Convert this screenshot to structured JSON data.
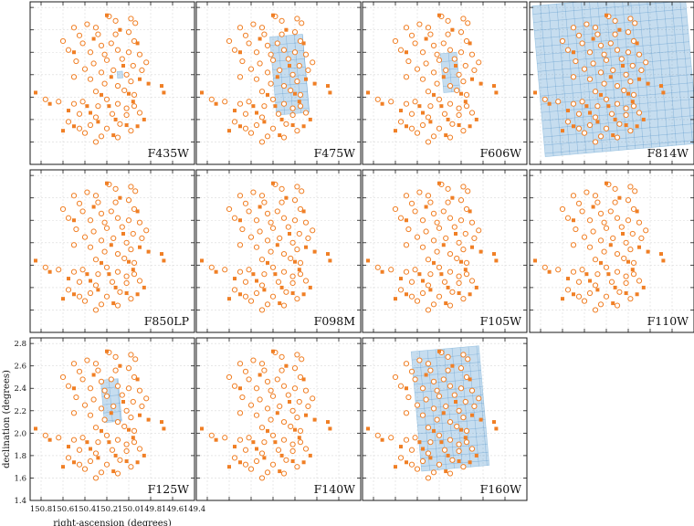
{
  "chart_data": {
    "type": "scatter",
    "xlabel": "right-ascension (degrees)",
    "ylabel": "declination (degrees)",
    "xlim": [
      150.9,
      149.4
    ],
    "ylim": [
      1.4,
      2.85
    ],
    "xticks": [
      "150.8",
      "150.6",
      "150.4",
      "150.2",
      "150.0",
      "149.8",
      "149.6",
      "149.4"
    ],
    "yticks": [
      "1.4",
      "1.6",
      "1.8",
      "2.0",
      "2.2",
      "2.4",
      "2.6",
      "2.8"
    ],
    "marker_color": "#f07f25",
    "footprint_color": "#5b9fd1",
    "panels": [
      {
        "filter": "F435W",
        "coverage": [
          {
            "ra": 150.08,
            "dec": 2.2,
            "w": 0.05,
            "h": 0.06
          }
        ]
      },
      {
        "filter": "F475W",
        "coverage": [
          {
            "ra": 150.05,
            "dec": 2.2,
            "w": 0.3,
            "h": 0.7
          }
        ]
      },
      {
        "filter": "F606W",
        "coverage": [
          {
            "ra": 150.1,
            "dec": 2.22,
            "w": 0.15,
            "h": 0.35
          }
        ]
      },
      {
        "filter": "F814W",
        "coverage": [
          {
            "ra": 150.12,
            "dec": 2.2,
            "w": 1.4,
            "h": 1.35
          }
        ]
      },
      {
        "filter": "F850LP",
        "coverage": []
      },
      {
        "filter": "F098M",
        "coverage": []
      },
      {
        "filter": "F105W",
        "coverage": []
      },
      {
        "filter": "F110W",
        "coverage": []
      },
      {
        "filter": "F125W",
        "coverage": [
          {
            "ra": 150.16,
            "dec": 2.29,
            "w": 0.16,
            "h": 0.38
          }
        ]
      },
      {
        "filter": "F140W",
        "coverage": []
      },
      {
        "filter": "F160W",
        "coverage": [
          {
            "ra": 150.1,
            "dec": 2.22,
            "w": 0.62,
            "h": 1.07
          }
        ]
      }
    ],
    "open_points": [
      [
        150.5,
        2.62
      ],
      [
        150.38,
        2.65
      ],
      [
        150.3,
        2.62
      ],
      [
        150.18,
        2.72
      ],
      [
        150.12,
        2.68
      ],
      [
        149.98,
        2.7
      ],
      [
        149.94,
        2.66
      ],
      [
        150.45,
        2.55
      ],
      [
        150.28,
        2.56
      ],
      [
        150.12,
        2.56
      ],
      [
        150.0,
        2.58
      ],
      [
        150.6,
        2.5
      ],
      [
        150.42,
        2.48
      ],
      [
        150.25,
        2.46
      ],
      [
        150.16,
        2.48
      ],
      [
        149.95,
        2.5
      ],
      [
        150.55,
        2.42
      ],
      [
        150.35,
        2.4
      ],
      [
        150.22,
        2.38
      ],
      [
        150.1,
        2.42
      ],
      [
        150.0,
        2.4
      ],
      [
        149.9,
        2.38
      ],
      [
        150.48,
        2.32
      ],
      [
        150.32,
        2.3
      ],
      [
        150.2,
        2.33
      ],
      [
        150.06,
        2.34
      ],
      [
        149.96,
        2.28
      ],
      [
        150.4,
        2.25
      ],
      [
        150.25,
        2.22
      ],
      [
        150.14,
        2.24
      ],
      [
        150.02,
        2.2
      ],
      [
        149.98,
        2.14
      ],
      [
        150.5,
        2.18
      ],
      [
        150.35,
        2.16
      ],
      [
        150.22,
        2.12
      ],
      [
        150.1,
        2.1
      ],
      [
        149.88,
        2.24
      ],
      [
        149.84,
        2.31
      ],
      [
        150.3,
        2.05
      ],
      [
        150.04,
        2.06
      ],
      [
        149.95,
        2.02
      ],
      [
        150.76,
        1.98
      ],
      [
        150.64,
        1.96
      ],
      [
        150.5,
        1.94
      ],
      [
        150.42,
        1.96
      ],
      [
        150.28,
        1.92
      ],
      [
        150.2,
        1.98
      ],
      [
        150.1,
        1.94
      ],
      [
        150.02,
        1.9
      ],
      [
        149.95,
        1.92
      ],
      [
        150.45,
        1.85
      ],
      [
        150.3,
        1.82
      ],
      [
        150.15,
        1.85
      ],
      [
        150.02,
        1.84
      ],
      [
        149.9,
        1.86
      ],
      [
        150.55,
        1.78
      ],
      [
        150.35,
        1.75
      ],
      [
        150.2,
        1.72
      ],
      [
        150.08,
        1.76
      ],
      [
        150.4,
        1.68
      ],
      [
        150.25,
        1.65
      ],
      [
        149.98,
        1.7
      ],
      [
        150.1,
        1.64
      ],
      [
        150.3,
        1.6
      ],
      [
        150.45,
        1.72
      ]
    ],
    "filled_points": [
      [
        150.2,
        2.73
      ],
      [
        150.08,
        2.6
      ],
      [
        150.32,
        2.52
      ],
      [
        149.92,
        2.48
      ],
      [
        150.5,
        2.4
      ],
      [
        150.05,
        2.28
      ],
      [
        150.16,
        2.18
      ],
      [
        149.9,
        2.16
      ],
      [
        149.82,
        2.12
      ],
      [
        149.7,
        2.1
      ],
      [
        149.68,
        2.04
      ],
      [
        150.85,
        2.04
      ],
      [
        150.72,
        1.94
      ],
      [
        150.38,
        1.92
      ],
      [
        150.18,
        1.92
      ],
      [
        149.96,
        1.96
      ],
      [
        150.0,
        2.03
      ],
      [
        150.25,
        2.02
      ],
      [
        150.55,
        1.88
      ],
      [
        150.35,
        1.86
      ],
      [
        150.12,
        1.8
      ],
      [
        149.86,
        1.8
      ],
      [
        150.5,
        1.74
      ],
      [
        150.28,
        1.78
      ],
      [
        150.14,
        1.66
      ],
      [
        150.02,
        1.75
      ],
      [
        149.92,
        1.74
      ],
      [
        150.6,
        1.7
      ]
    ]
  }
}
